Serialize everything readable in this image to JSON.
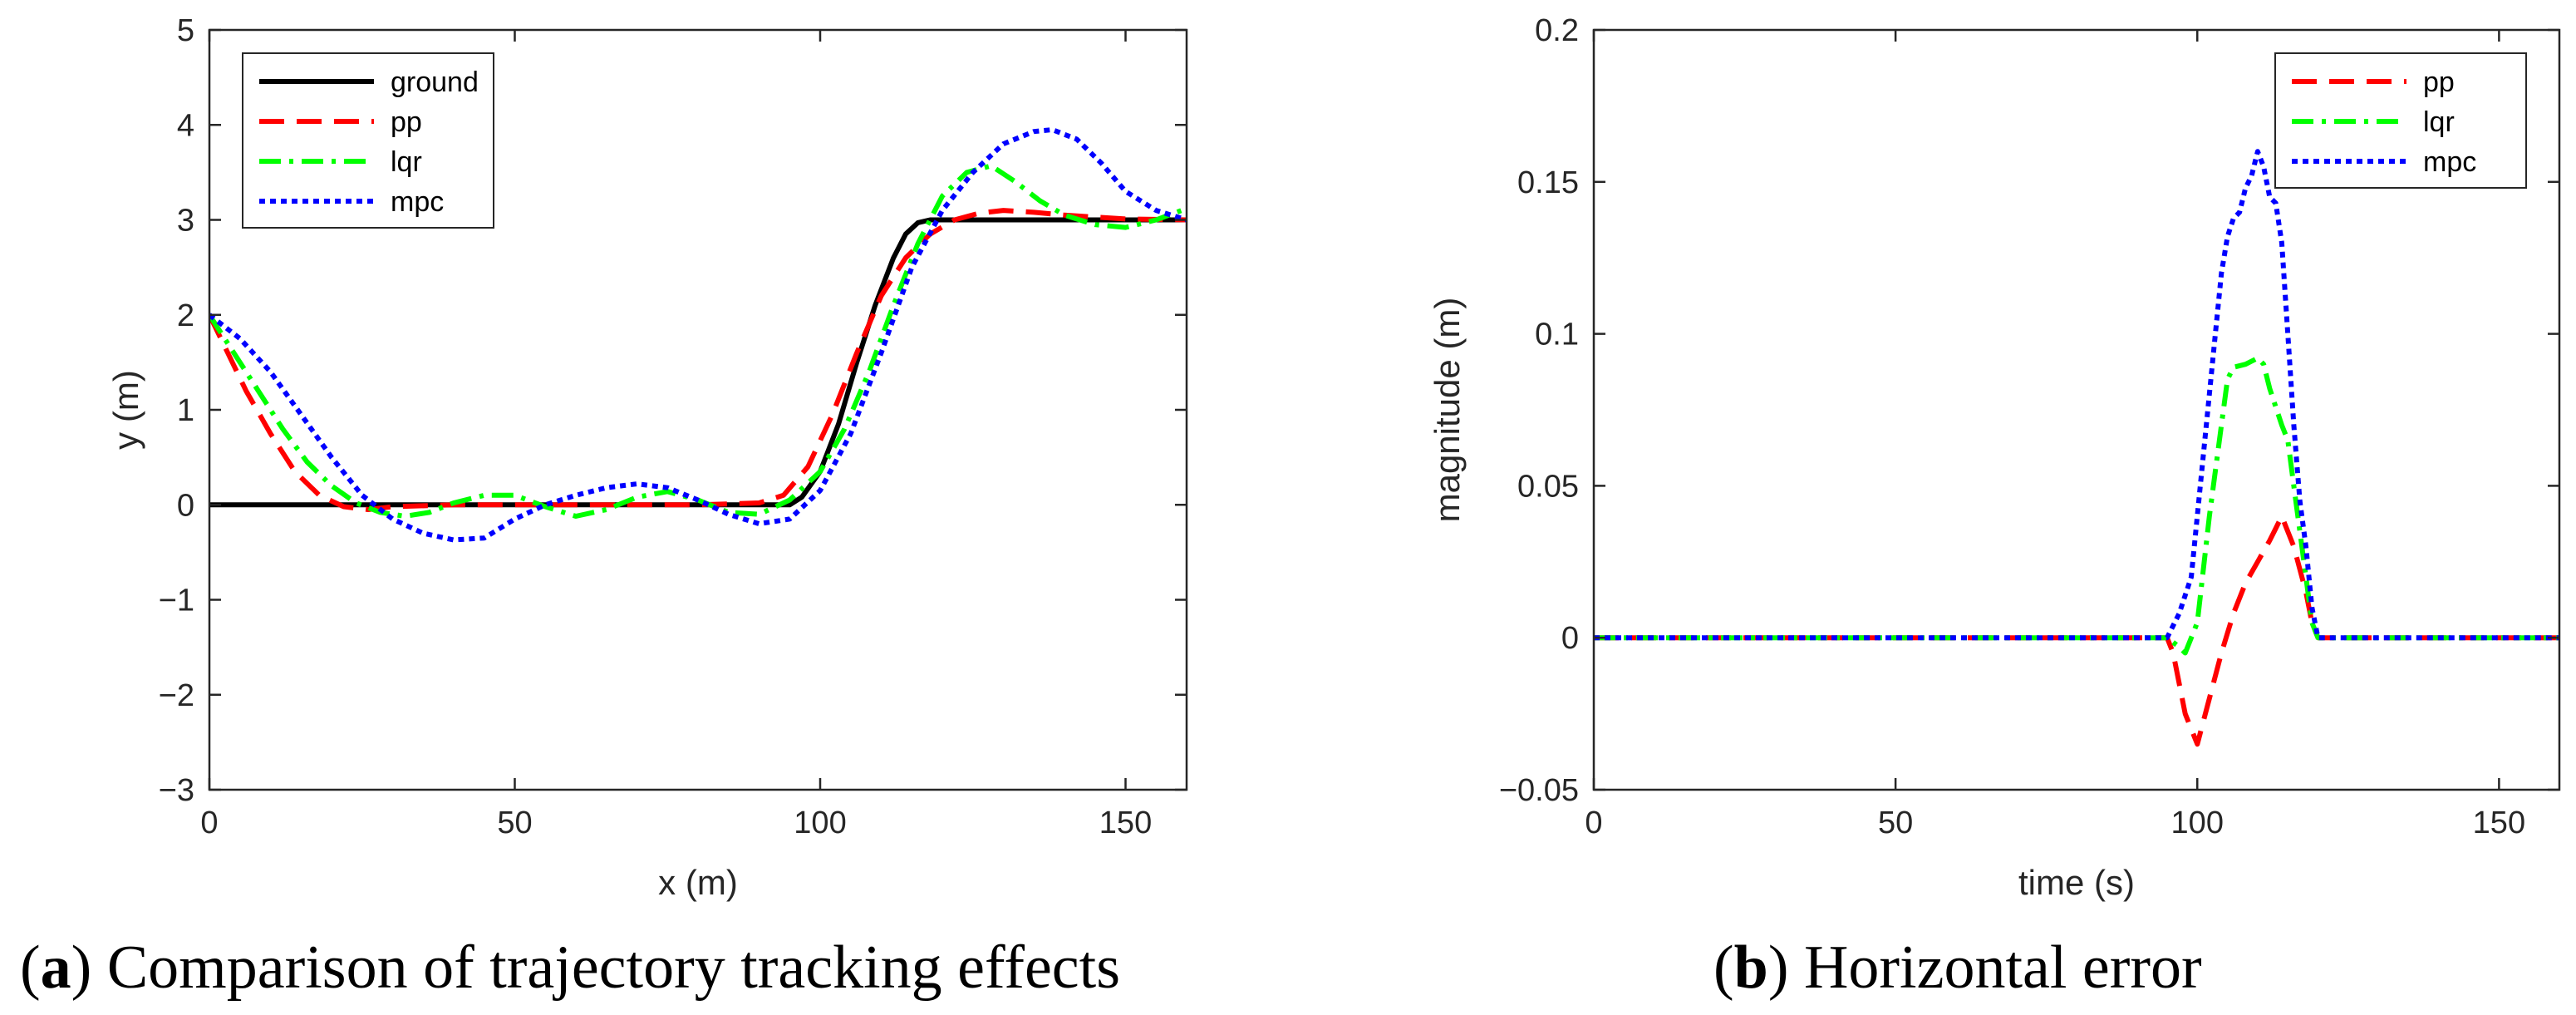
{
  "chart_data": [
    {
      "type": "line",
      "panel": "a",
      "caption_letter": "a",
      "caption_text": "Comparison of trajectory tracking effects",
      "xlabel": "x (m)",
      "ylabel": "y (m)",
      "xlim": [
        0,
        160
      ],
      "ylim": [
        -3,
        5
      ],
      "xticks": [
        0,
        50,
        100,
        150
      ],
      "yticks": [
        -3,
        -2,
        -1,
        0,
        1,
        2,
        3,
        4,
        5
      ],
      "xtick_labels": [
        "0",
        "50",
        "100",
        "150"
      ],
      "ytick_labels": [
        "−3",
        "−2",
        "−1",
        "0",
        "1",
        "2",
        "3",
        "4",
        "5"
      ],
      "grid": false,
      "legend_position": "top-left",
      "series": [
        {
          "name": "ground",
          "color": "#000000",
          "style": "solid",
          "x": [
            0,
            95,
            97,
            100,
            103,
            106,
            109,
            112,
            114,
            116,
            118,
            160
          ],
          "y": [
            0,
            0,
            0.08,
            0.35,
            0.85,
            1.5,
            2.1,
            2.6,
            2.85,
            2.97,
            3.0,
            3.0
          ]
        },
        {
          "name": "pp",
          "color": "#ff0000",
          "style": "dashed",
          "x": [
            0,
            3,
            6,
            10,
            14,
            18,
            22,
            26,
            30,
            40,
            50,
            60,
            70,
            80,
            90,
            94,
            98,
            102,
            106,
            110,
            114,
            118,
            122,
            126,
            130,
            135,
            140,
            150,
            160
          ],
          "y": [
            2.0,
            1.6,
            1.2,
            0.75,
            0.35,
            0.1,
            -0.02,
            -0.05,
            -0.02,
            0,
            0,
            0,
            0,
            0,
            0.02,
            0.1,
            0.4,
            0.95,
            1.6,
            2.2,
            2.6,
            2.85,
            3.0,
            3.07,
            3.1,
            3.08,
            3.05,
            3.01,
            3.0
          ]
        },
        {
          "name": "lqr",
          "color": "#00ff00",
          "style": "dashdot",
          "x": [
            0,
            4,
            8,
            12,
            16,
            20,
            24,
            28,
            32,
            36,
            40,
            45,
            50,
            55,
            60,
            65,
            70,
            75,
            80,
            85,
            90,
            95,
            100,
            104,
            108,
            112,
            116,
            120,
            124,
            128,
            132,
            136,
            140,
            145,
            150,
            155,
            160
          ],
          "y": [
            2.0,
            1.6,
            1.2,
            0.8,
            0.45,
            0.2,
            0.02,
            -0.08,
            -0.12,
            -0.08,
            0.02,
            0.1,
            0.1,
            -0.02,
            -0.12,
            -0.05,
            0.08,
            0.14,
            0.05,
            -0.08,
            -0.1,
            0.05,
            0.35,
            0.8,
            1.4,
            2.1,
            2.75,
            3.25,
            3.5,
            3.57,
            3.4,
            3.2,
            3.05,
            2.95,
            2.92,
            3.0,
            3.12
          ]
        },
        {
          "name": "mpc",
          "color": "#0000ff",
          "style": "dotted",
          "x": [
            0,
            5,
            10,
            15,
            20,
            25,
            30,
            35,
            40,
            45,
            50,
            55,
            60,
            65,
            70,
            75,
            80,
            85,
            90,
            95,
            100,
            105,
            110,
            115,
            120,
            125,
            130,
            135,
            138,
            142,
            146,
            150,
            155,
            160
          ],
          "y": [
            2.0,
            1.75,
            1.4,
            0.95,
            0.5,
            0.1,
            -0.15,
            -0.3,
            -0.37,
            -0.35,
            -0.15,
            0.0,
            0.1,
            0.18,
            0.22,
            0.18,
            0.05,
            -0.1,
            -0.2,
            -0.15,
            0.15,
            0.75,
            1.6,
            2.5,
            3.1,
            3.5,
            3.8,
            3.93,
            3.95,
            3.85,
            3.6,
            3.3,
            3.1,
            3.0
          ]
        }
      ]
    },
    {
      "type": "line",
      "panel": "b",
      "caption_letter": "b",
      "caption_text": "Horizontal error",
      "xlabel": "time (s)",
      "ylabel": "magnitude (m)",
      "xlim": [
        0,
        160
      ],
      "ylim": [
        -0.05,
        0.2
      ],
      "xticks": [
        0,
        50,
        100,
        150
      ],
      "yticks": [
        -0.05,
        0,
        0.05,
        0.1,
        0.15,
        0.2
      ],
      "xtick_labels": [
        "0",
        "50",
        "100",
        "150"
      ],
      "ytick_labels": [
        "−0.05",
        "0",
        "0.05",
        "0.1",
        "0.15",
        "0.2"
      ],
      "grid": false,
      "legend_position": "top-right",
      "series": [
        {
          "name": "pp",
          "color": "#ff0000",
          "style": "dashed",
          "x": [
            0,
            95,
            96,
            98,
            100,
            102,
            104,
            106,
            108,
            110,
            112,
            113,
            114,
            116,
            118,
            119,
            120,
            160
          ],
          "y": [
            0,
            0,
            -0.005,
            -0.025,
            -0.035,
            -0.02,
            -0.005,
            0.008,
            0.018,
            0.025,
            0.032,
            0.036,
            0.04,
            0.03,
            0.015,
            0.005,
            0,
            0
          ]
        },
        {
          "name": "lqr",
          "color": "#00ff00",
          "style": "dashdot",
          "x": [
            0,
            95,
            97,
            98,
            100,
            102,
            104,
            105,
            106,
            108,
            110,
            111,
            112,
            114,
            115,
            116,
            118,
            119,
            120,
            160
          ],
          "y": [
            0,
            0,
            -0.003,
            -0.005,
            0.005,
            0.04,
            0.07,
            0.085,
            0.089,
            0.09,
            0.092,
            0.09,
            0.082,
            0.07,
            0.065,
            0.05,
            0.02,
            0.005,
            0,
            0
          ]
        },
        {
          "name": "mpc",
          "color": "#0000ff",
          "style": "dotted",
          "x": [
            0,
            95,
            97,
            99,
            101,
            103,
            104,
            105,
            106,
            107,
            108,
            109,
            110,
            111,
            112,
            113,
            114,
            115,
            116,
            117,
            118,
            119,
            120,
            160
          ],
          "y": [
            0,
            0,
            0.008,
            0.02,
            0.06,
            0.1,
            0.12,
            0.132,
            0.138,
            0.14,
            0.148,
            0.152,
            0.16,
            0.155,
            0.145,
            0.143,
            0.13,
            0.1,
            0.07,
            0.045,
            0.03,
            0.01,
            0,
            0
          ]
        }
      ]
    }
  ]
}
